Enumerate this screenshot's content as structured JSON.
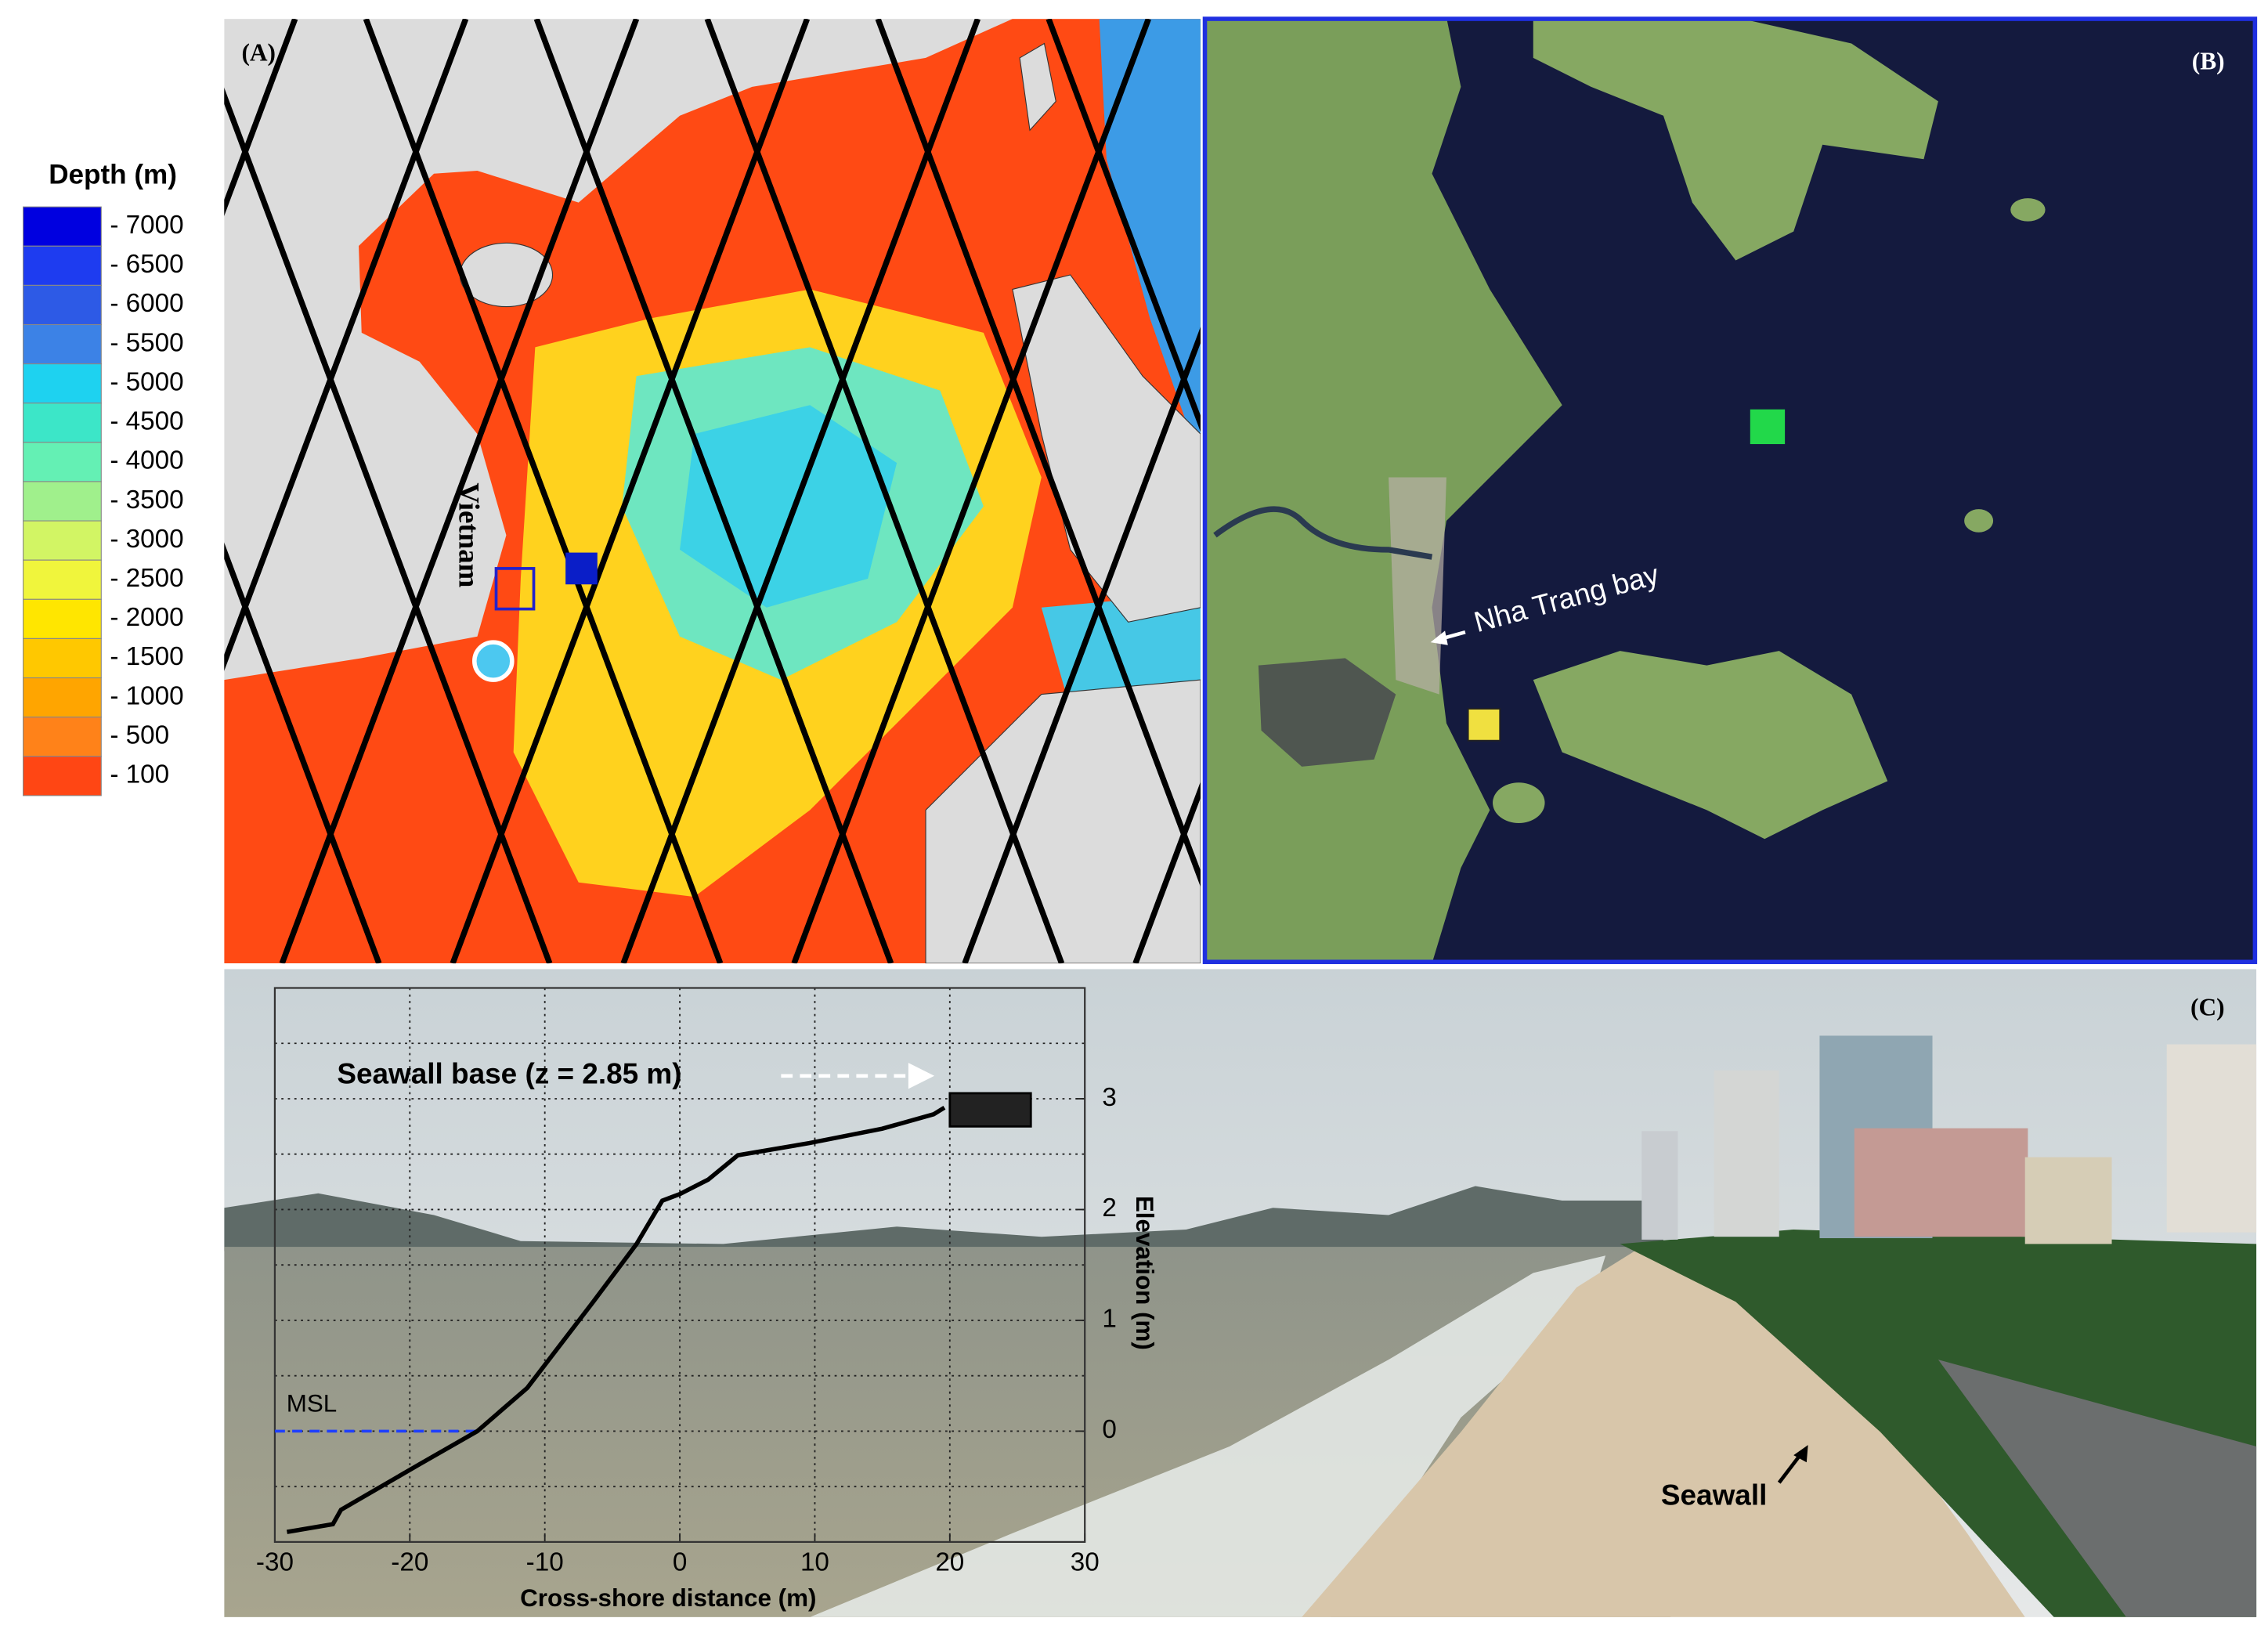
{
  "figure": {
    "legend": {
      "title": "Depth (m)",
      "levels": [
        {
          "label": "- 7000",
          "color": "#0000e0"
        },
        {
          "label": "- 6500",
          "color": "#1e3cf0"
        },
        {
          "label": "- 6000",
          "color": "#2d5ae6"
        },
        {
          "label": "- 5500",
          "color": "#3c82e6"
        },
        {
          "label": "- 5000",
          "color": "#1ed2f0"
        },
        {
          "label": "- 4500",
          "color": "#3ce6c8"
        },
        {
          "label": "- 4000",
          "color": "#64f0b4"
        },
        {
          "label": "- 3500",
          "color": "#a0f08c"
        },
        {
          "label": "- 3000",
          "color": "#d2f564"
        },
        {
          "label": "- 2500",
          "color": "#f0f53c"
        },
        {
          "label": "- 2000",
          "color": "#ffe600"
        },
        {
          "label": "- 1500",
          "color": "#ffc800"
        },
        {
          "label": "- 1000",
          "color": "#ffa500"
        },
        {
          "label": "- 500",
          "color": "#ff8219"
        },
        {
          "label": "- 100",
          "color": "#ff4614"
        }
      ]
    },
    "panel_a": {
      "label": "(A)",
      "country": "Vietnam"
    },
    "panel_b": {
      "label": "(B)",
      "place": "Nha Trang bay"
    },
    "panel_c": {
      "label": "(C)",
      "annotation": "Seawall"
    }
  },
  "chart_data": {
    "type": "line",
    "xlabel": "Cross-shore distance (m)",
    "ylabel": "Elevation (m)",
    "xlim": [
      -30,
      30
    ],
    "ylim": [
      -1,
      4
    ],
    "xticks": [
      -30,
      -20,
      -10,
      0,
      10,
      20,
      30
    ],
    "yticks": [
      0,
      1,
      2,
      3
    ],
    "yminorticks": [
      -0.5,
      0.5,
      1.5,
      2.5,
      3.5
    ],
    "grid": true,
    "series": [
      {
        "color": "#000000",
        "x": [
          -29.1,
          -25.7,
          -25.1,
          -19.3,
          -15,
          -11.3,
          -6.4,
          -3.2,
          -1.3,
          0,
          2.1,
          4.3,
          9.6,
          15,
          18.8,
          19.6
        ],
        "values": [
          -0.91,
          -0.84,
          -0.71,
          -0.3,
          0,
          0.39,
          1.17,
          1.69,
          2.08,
          2.14,
          2.27,
          2.49,
          2.6,
          2.73,
          2.86,
          2.92
        ]
      }
    ],
    "seawall": {
      "x": [
        20,
        26
      ],
      "values": [
        2.75,
        3.05
      ],
      "color": "#222222"
    },
    "msl": {
      "label": "MSL",
      "value": 0,
      "x": [
        -30,
        -15
      ],
      "color": "#1f3fff"
    },
    "annotation": "Seawall base (z = 2.85 m)"
  }
}
